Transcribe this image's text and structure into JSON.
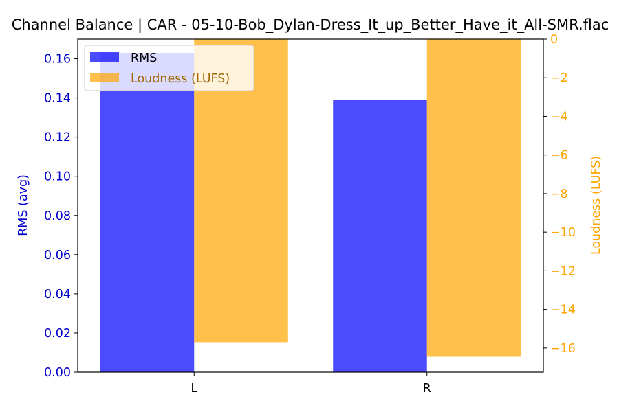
{
  "chart_data": {
    "type": "bar",
    "title": "Channel Balance | CAR - 05-10-Bob_Dylan-Dress_It_up_Better_Have_it_All-SMR.flac",
    "categories": [
      "L",
      "R"
    ],
    "series": [
      {
        "name": "RMS",
        "axis": "left",
        "color": "#0000ff",
        "values": [
          0.163,
          0.139
        ]
      },
      {
        "name": "Loudness (LUFS)",
        "axis": "right",
        "color": "#ffa500",
        "values": [
          -15.7,
          -16.45
        ]
      }
    ],
    "ylabel": "RMS (avg)",
    "ylabel_right": "Loudness (LUFS)",
    "ylim": [
      0,
      0.17
    ],
    "ylim_right": [
      -17.25,
      0
    ],
    "yticks": [
      "0.00",
      "0.02",
      "0.04",
      "0.06",
      "0.08",
      "0.10",
      "0.12",
      "0.14",
      "0.16"
    ],
    "yticks_right": [
      "0",
      "−2",
      "−4",
      "−6",
      "−8",
      "−10",
      "−12",
      "−14",
      "−16"
    ],
    "ytick_values": [
      0,
      0.02,
      0.04,
      0.06,
      0.08,
      0.1,
      0.12,
      0.14,
      0.16
    ],
    "ytick_values_right": [
      0,
      -2,
      -4,
      -6,
      -8,
      -10,
      -12,
      -14,
      -16
    ],
    "legend_position": "top-left",
    "grid": false,
    "left_axis_color": "#0000cc",
    "right_axis_color": "#ffa500"
  }
}
